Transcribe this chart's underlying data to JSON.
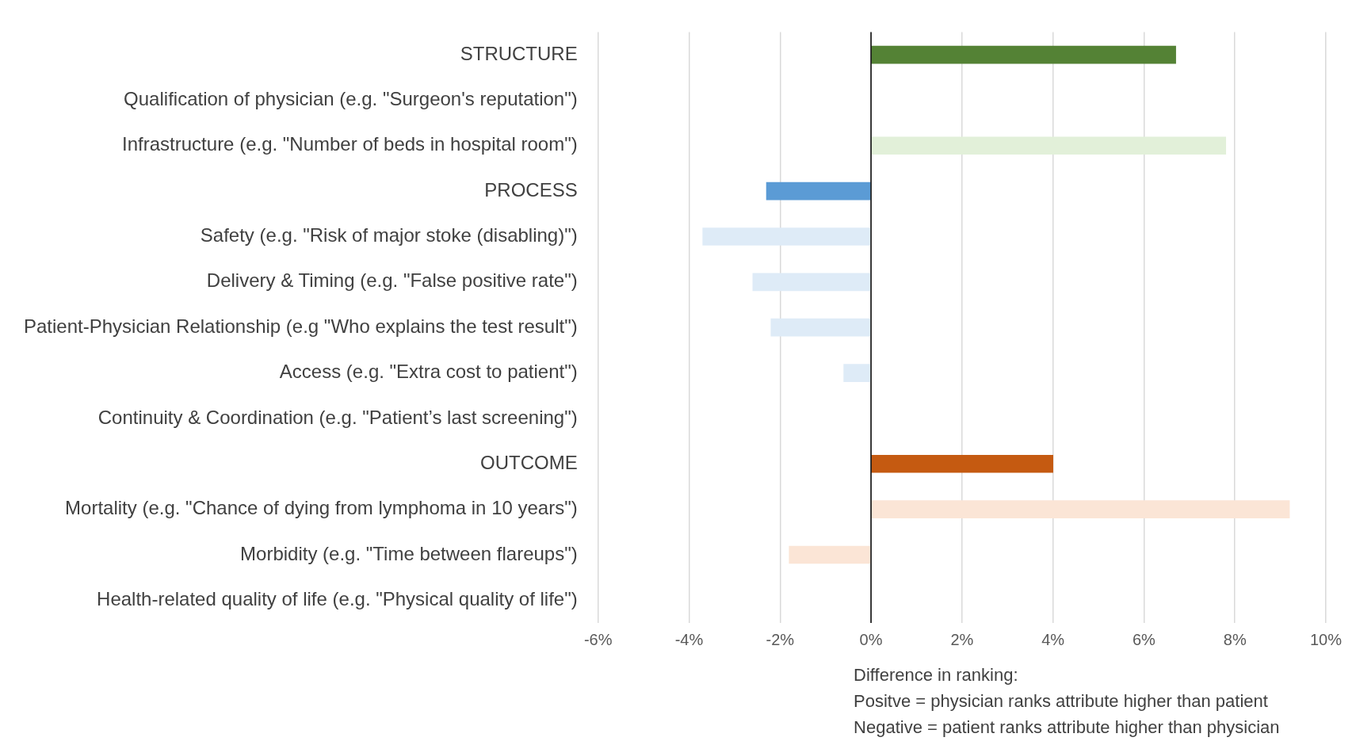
{
  "chart_data": {
    "type": "bar",
    "orientation": "horizontal",
    "categories": [
      "STRUCTURE",
      "Qualification of physician (e.g. \"Surgeon's reputation\")",
      "Infrastructure (e.g. \"Number of beds in hospital room\")",
      "PROCESS",
      "Safety (e.g. \"Risk of major stoke (disabling)\")",
      "Delivery & Timing (e.g. \"False positive rate\")",
      "Patient-Physician Relationship (e.g \"Who explains the test result\")",
      "Access (e.g. \"Extra cost to patient\")",
      "Continuity & Coordination (e.g. \"Patient’s last screening\")",
      "OUTCOME",
      "Mortality (e.g. \"Chance of dying from lymphoma in 10 years\")",
      "Morbidity (e.g. \"Time between flareups\")",
      "Health-related quality of life (e.g. \"Physical quality of life\")"
    ],
    "values": [
      6.7,
      null,
      7.8,
      -2.3,
      -3.7,
      -2.6,
      -2.2,
      -0.6,
      null,
      4.0,
      9.2,
      -1.8,
      null
    ],
    "colors": [
      "#548235",
      "#e2f0d9",
      "#e2f0d9",
      "#5b9bd5",
      "#deebf7",
      "#deebf7",
      "#deebf7",
      "#deebf7",
      "#deebf7",
      "#c55a11",
      "#fbe5d6",
      "#fbe5d6",
      "#fbe5d6"
    ],
    "xlim": [
      -6,
      10
    ],
    "xticks": [
      {
        "value": -6,
        "label": "-6%"
      },
      {
        "value": -4,
        "label": "-4%"
      },
      {
        "value": -2,
        "label": "-2%"
      },
      {
        "value": 0,
        "label": "0%"
      },
      {
        "value": 2,
        "label": "2%"
      },
      {
        "value": 4,
        "label": "4%"
      },
      {
        "value": 6,
        "label": "6%"
      },
      {
        "value": 8,
        "label": "8%"
      },
      {
        "value": 10,
        "label": "10%"
      }
    ],
    "xlabel": "Difference in ranking:\nPositve = physician ranks attribute higher than patient\nNegative = patient ranks attribute higher than physician",
    "grid": "x",
    "legend": false
  }
}
